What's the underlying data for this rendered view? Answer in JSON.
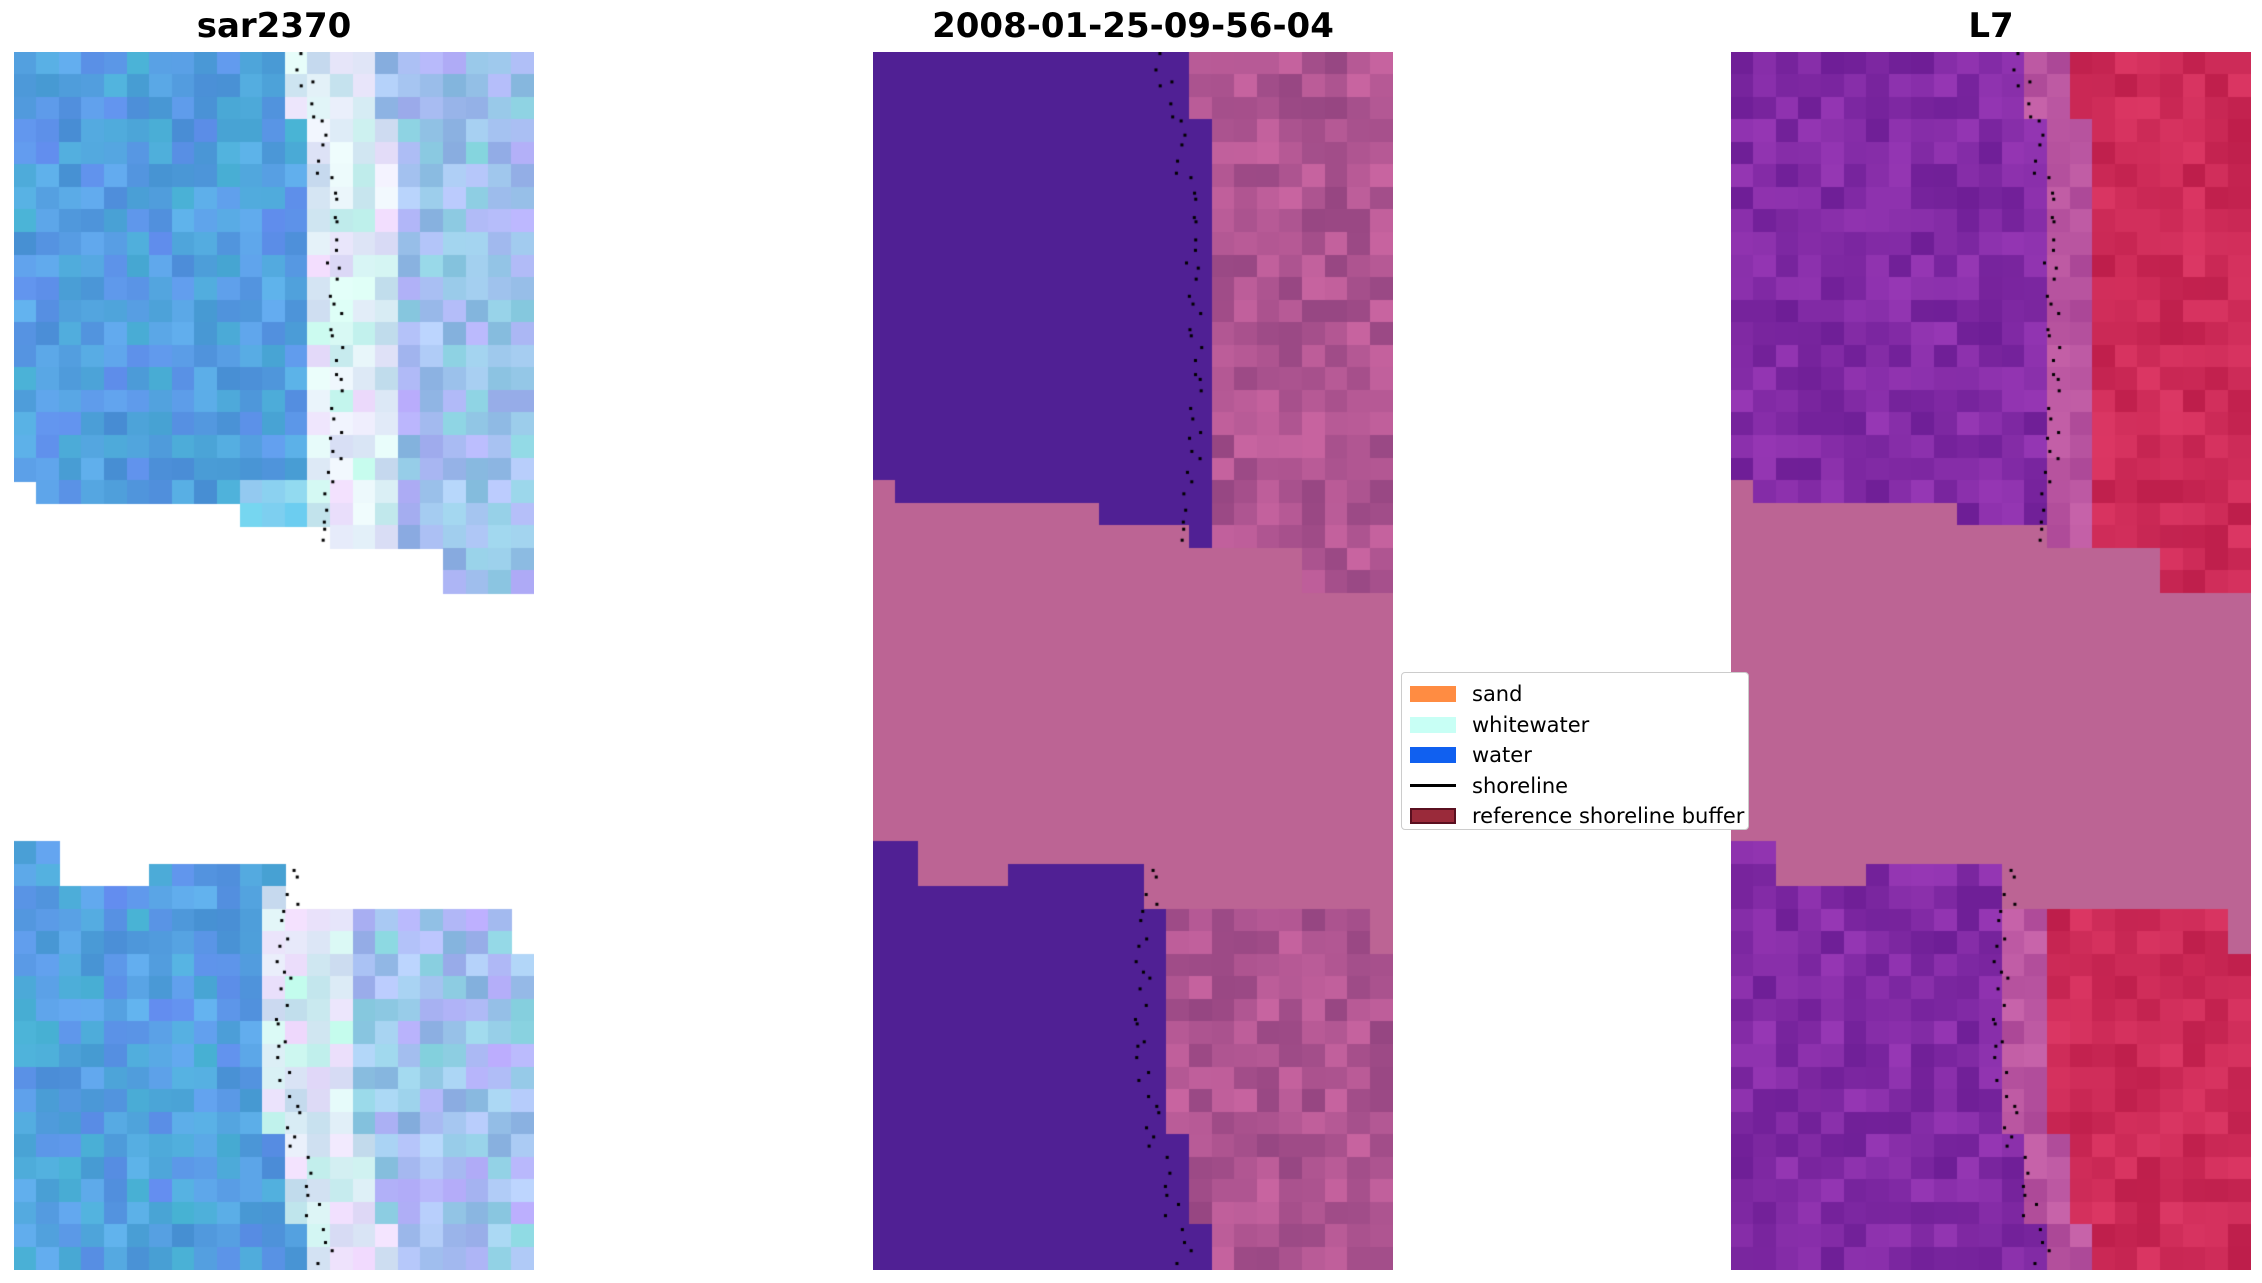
{
  "panels": [
    {
      "title": "sar2370",
      "style": "rgb"
    },
    {
      "title": "2008-01-25-09-56-04",
      "style": "classified"
    },
    {
      "title": "L7",
      "style": "index"
    }
  ],
  "legend": {
    "items": [
      {
        "label": "sand",
        "kind": "patch",
        "color": "#ff8c42",
        "edge": "#ff8c42"
      },
      {
        "label": "whitewater",
        "kind": "patch",
        "color": "#c8fff5",
        "edge": "#c8fff5"
      },
      {
        "label": "water",
        "kind": "patch",
        "color": "#1060f0",
        "edge": "#1060f0"
      },
      {
        "label": "shoreline",
        "kind": "line",
        "color": "#000000"
      },
      {
        "label": "reference shoreline buffer",
        "kind": "patch",
        "color": "#9a2a3a",
        "edge": "#5a1020"
      }
    ]
  },
  "colors": {
    "nodata_overlay": "#bc6494",
    "water_class": "#502094",
    "shoreline_dots": "#000000"
  }
}
